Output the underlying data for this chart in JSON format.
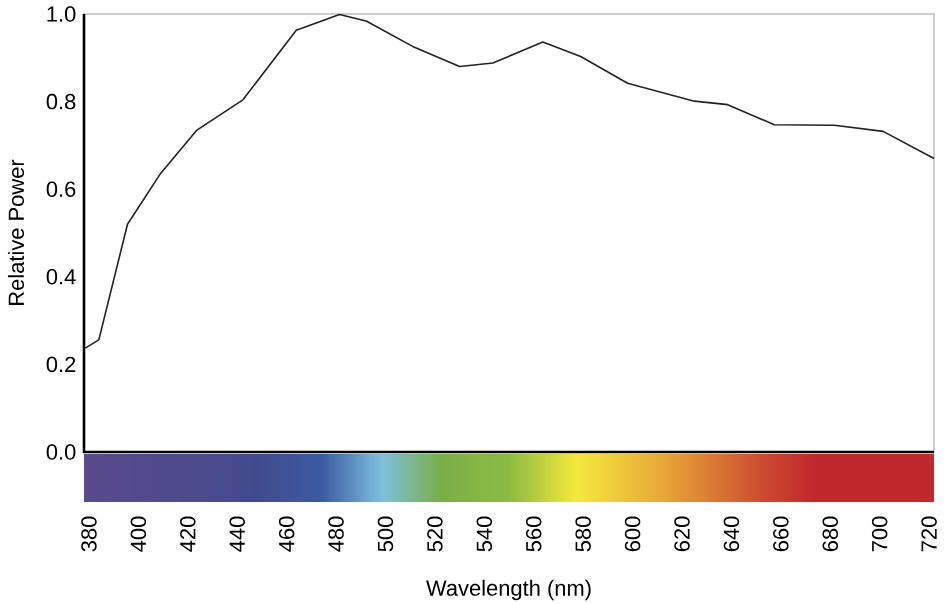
{
  "chart_data": {
    "type": "line",
    "xlabel": "Wavelength (nm)",
    "ylabel": "Relative Power",
    "xlim": [
      378,
      722
    ],
    "ylim": [
      0,
      1
    ],
    "xticks": [
      380,
      400,
      420,
      440,
      460,
      480,
      500,
      520,
      540,
      560,
      580,
      600,
      620,
      640,
      660,
      680,
      700,
      720
    ],
    "yticks": [
      {
        "value": 0,
        "label": "0.0"
      },
      0.2,
      0.4,
      0.6,
      0.8,
      {
        "value": 1,
        "label": "1.0"
      }
    ],
    "grid": false,
    "marker": "none",
    "line_style": "solid",
    "series": [
      {
        "color": "#222222",
        "x": [
          378.5,
          384,
          395.6,
          409,
          423.7,
          442.3,
          463.9,
          481.4,
          492.2,
          511,
          530,
          543.5,
          563.7,
          579,
          598,
          625,
          638.5,
          657.4,
          681.7,
          701.4,
          722
        ],
        "values": [
          0.237,
          0.256,
          0.52,
          0.636,
          0.735,
          0.804,
          0.963,
          0.999,
          0.984,
          0.926,
          0.88,
          0.888,
          0.936,
          0.903,
          0.842,
          0.801,
          0.793,
          0.747,
          0.746,
          0.732,
          0.67
        ]
      }
    ]
  }
}
